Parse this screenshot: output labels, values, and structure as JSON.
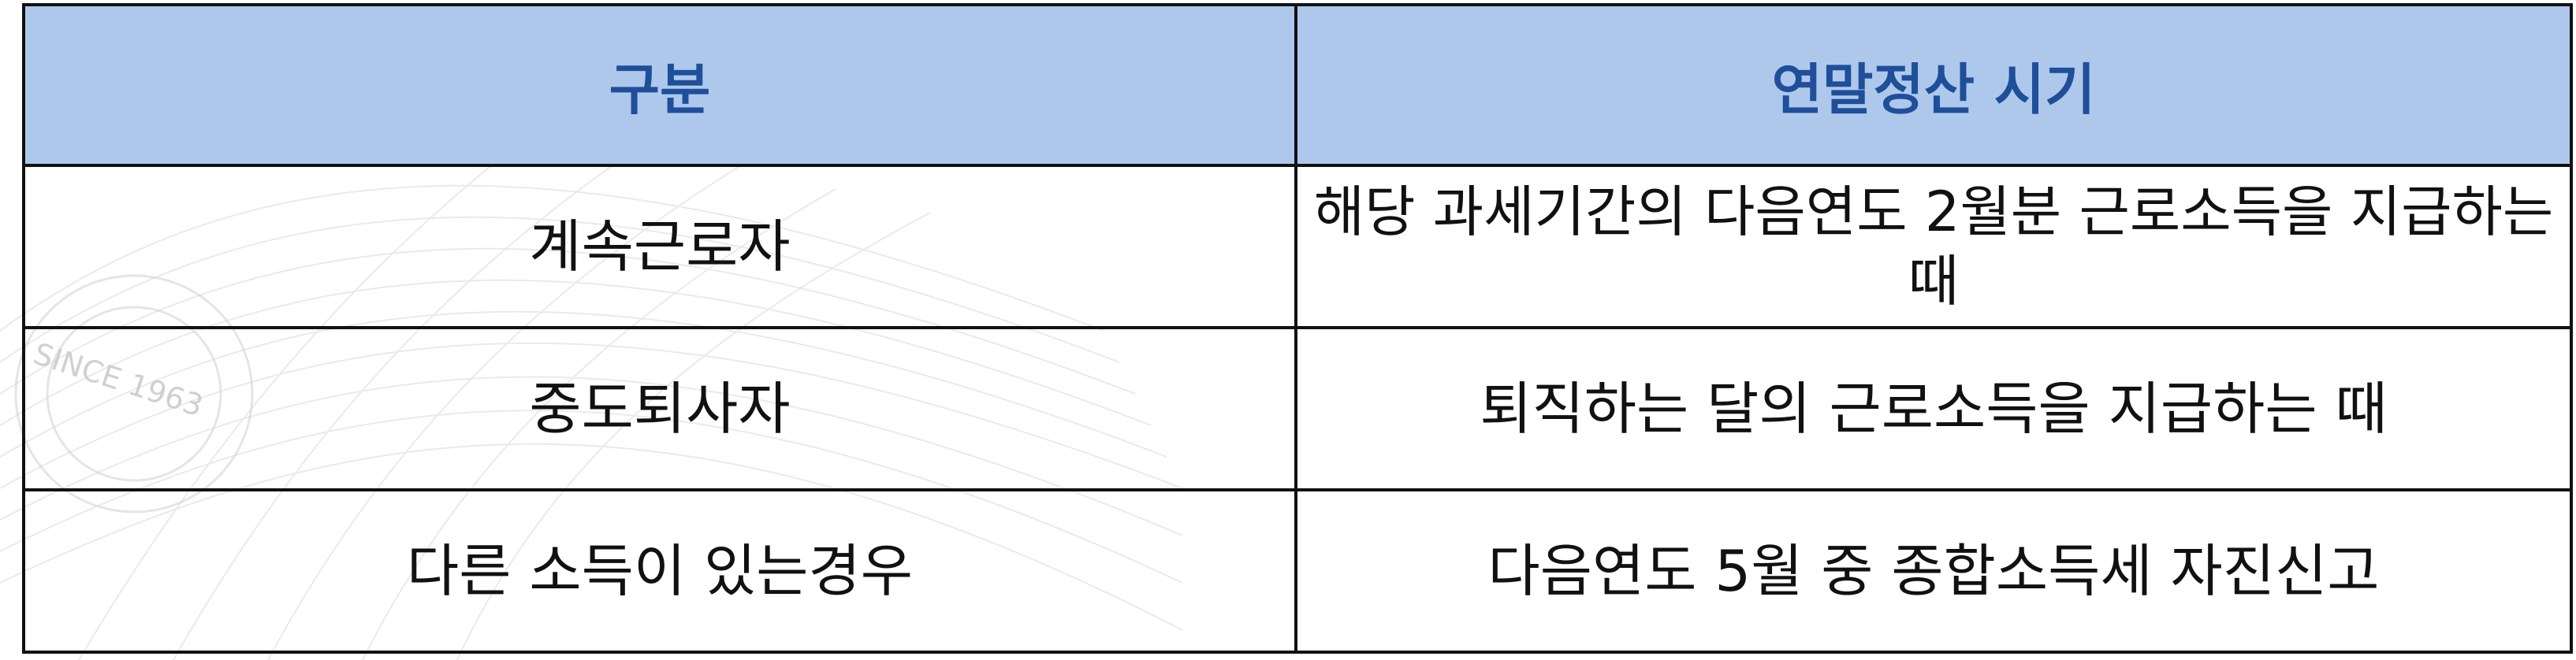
{
  "colors": {
    "header_background": "#aec8ec",
    "header_text": "#1f4f99",
    "body_text": "#111111",
    "border": "#111111"
  },
  "table": {
    "headers": [
      "구분",
      "연말정산 시기"
    ],
    "rows": [
      [
        "계속근로자",
        "해당 과세기간의 다음연도 2월분 근로소득을 지급하는 때"
      ],
      [
        "중도퇴사자",
        "퇴직하는 달의 근로소득을 지급하는 때"
      ],
      [
        "다른 소득이 있는경우",
        "다음연도 5월 중 종합소득세 자진신고"
      ]
    ]
  },
  "watermark": {
    "seal_text": "SINCE 1963"
  }
}
